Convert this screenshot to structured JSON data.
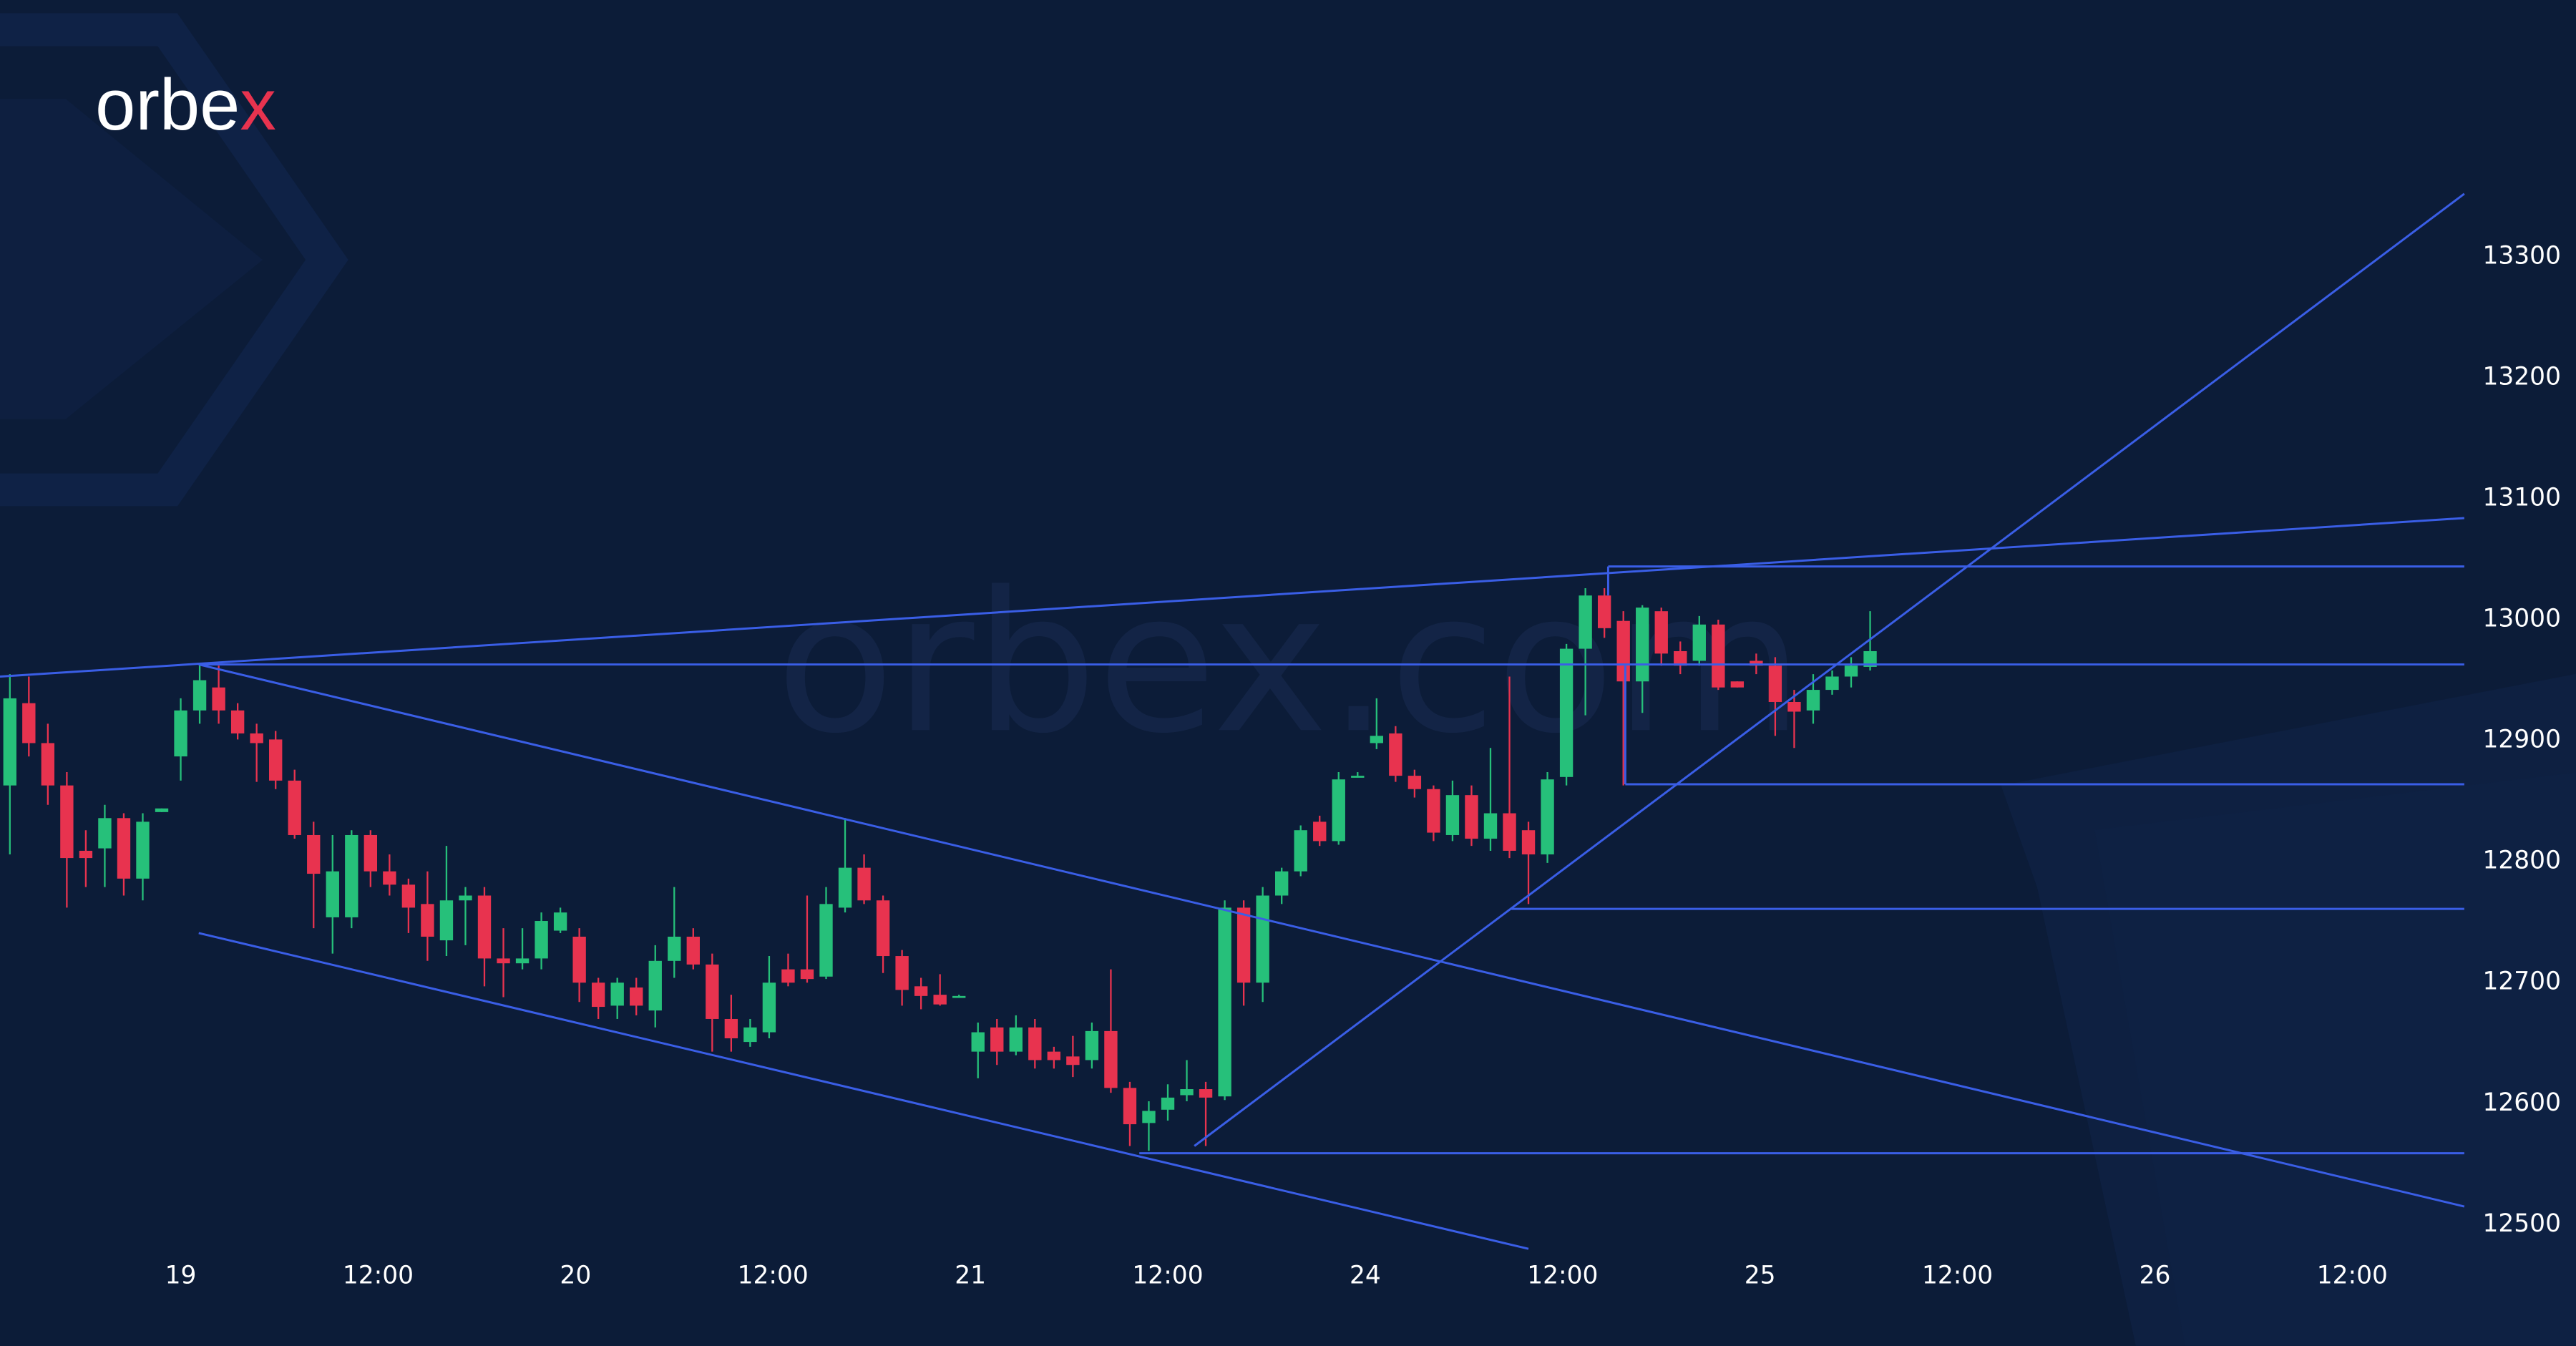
{
  "chart_data": {
    "type": "candlestick",
    "logo": "orbex",
    "watermark": "orbex.com",
    "up_color": "#26c07a",
    "down_color": "#e8334f",
    "line_color": "#3a5ee6",
    "xlim": [
      -9.52,
      120.3
    ],
    "ylim": [
      12480,
      13512
    ],
    "xticks": [
      {
        "value": 0,
        "label": "19"
      },
      {
        "value": 10.4,
        "label": "12:00"
      },
      {
        "value": 20.8,
        "label": "20"
      },
      {
        "value": 31.2,
        "label": "12:00"
      },
      {
        "value": 41.6,
        "label": "21"
      },
      {
        "value": 52,
        "label": "12:00"
      },
      {
        "value": 62.4,
        "label": "24"
      },
      {
        "value": 72.8,
        "label": "12:00"
      },
      {
        "value": 83.2,
        "label": "25"
      },
      {
        "value": 93.6,
        "label": "12:00"
      },
      {
        "value": 104,
        "label": "26"
      },
      {
        "value": 114.4,
        "label": "12:00"
      }
    ],
    "yticks": [
      12500,
      12600,
      12700,
      12800,
      12900,
      13000,
      13100,
      13200,
      13300
    ],
    "x": [
      -9,
      -8,
      -7,
      -6,
      -5,
      -4,
      -3,
      -2,
      -1,
      0,
      1,
      2,
      3,
      4,
      5,
      6,
      7,
      8,
      9,
      10,
      11,
      12,
      13,
      14,
      15,
      16,
      17,
      18,
      19,
      20,
      21,
      22,
      23,
      24,
      25,
      26,
      27,
      28,
      29,
      30,
      31,
      32,
      33,
      34,
      35,
      36,
      37,
      38,
      39,
      40,
      41,
      42,
      43,
      44,
      45,
      46,
      47,
      48,
      49,
      50,
      51,
      52,
      53,
      54,
      55,
      56,
      57,
      58,
      59,
      60,
      61,
      62,
      63,
      64,
      65,
      66,
      67,
      68,
      69,
      70,
      71,
      72,
      73,
      74,
      75,
      76,
      77,
      78,
      79,
      80,
      81,
      82,
      83,
      84,
      85,
      86,
      87,
      88,
      89
    ],
    "open": [
      12863,
      12931,
      12898,
      12863,
      12809,
      12811,
      12836,
      12786,
      12841,
      12887,
      12925,
      12944,
      12925,
      12906,
      12901,
      12867,
      12822,
      12754,
      12754,
      12822,
      12792,
      12781,
      12765,
      12735,
      12768,
      12772,
      12720,
      12716,
      12720,
      12743,
      12738,
      12700,
      12681,
      12696,
      12677,
      12718,
      12738,
      12715,
      12670,
      12651,
      12659,
      12711,
      12711,
      12705,
      12762,
      12795,
      12768,
      12722,
      12697,
      12690,
      12689,
      12643,
      12663,
      12643,
      12663,
      12643,
      12639,
      12636,
      12660,
      12613,
      12584,
      12595,
      12607,
      12612,
      12606,
      12762,
      12700,
      12772,
      12792,
      12833,
      12817,
      12871,
      12898,
      12906,
      12871,
      12860,
      12822,
      12855,
      12819,
      12840,
      12826,
      12806,
      12870,
      12976,
      13020,
      12999,
      12949,
      13007,
      12974,
      12966,
      12996,
      12949,
      12966,
      12962,
      12932,
      12925,
      12942,
      12953,
      12961
    ],
    "high": [
      12955,
      12953,
      12914,
      12874,
      12826,
      12847,
      12840,
      12840,
      12844,
      12935,
      12963,
      12962,
      12931,
      12914,
      12908,
      12876,
      12833,
      12822,
      12826,
      12826,
      12806,
      12786,
      12792,
      12813,
      12779,
      12779,
      12745,
      12745,
      12758,
      12762,
      12745,
      12704,
      12704,
      12704,
      12731,
      12779,
      12745,
      12724,
      12690,
      12670,
      12722,
      12724,
      12772,
      12779,
      12836,
      12806,
      12772,
      12727,
      12704,
      12707,
      12690,
      12667,
      12670,
      12673,
      12670,
      12647,
      12656,
      12667,
      12711,
      12618,
      12602,
      12616,
      12636,
      12618,
      12768,
      12768,
      12779,
      12795,
      12830,
      12838,
      12874,
      12874,
      12935,
      12912,
      12876,
      12863,
      12867,
      12863,
      12894,
      12953,
      12833,
      12874,
      12980,
      13026,
      13026,
      13007,
      13012,
      13010,
      12982,
      13003,
      13000,
      12949,
      12972,
      12969,
      12942,
      12955,
      12958,
      12969,
      13007
    ],
    "low": [
      12806,
      12887,
      12847,
      12762,
      12779,
      12779,
      12772,
      12768,
      12841,
      12867,
      12914,
      12914,
      12901,
      12866,
      12860,
      12819,
      12745,
      12724,
      12745,
      12779,
      12772,
      12741,
      12718,
      12722,
      12731,
      12697,
      12688,
      12711,
      12711,
      12741,
      12684,
      12670,
      12670,
      12673,
      12663,
      12704,
      12711,
      12643,
      12643,
      12647,
      12654,
      12697,
      12700,
      12703,
      12758,
      12765,
      12708,
      12681,
      12678,
      12681,
      12688,
      12621,
      12632,
      12640,
      12629,
      12629,
      12622,
      12629,
      12609,
      12565,
      12561,
      12586,
      12602,
      12565,
      12603,
      12681,
      12684,
      12765,
      12788,
      12813,
      12814,
      12870,
      12893,
      12866,
      12853,
      12817,
      12817,
      12813,
      12809,
      12803,
      12765,
      12799,
      12863,
      12921,
      12985,
      12863,
      12923,
      12962,
      12955,
      12962,
      12942,
      12944,
      12955,
      12904,
      12894,
      12914,
      12938,
      12944,
      12958
    ],
    "close": [
      12935,
      12898,
      12863,
      12803,
      12803,
      12836,
      12786,
      12833,
      12844,
      12925,
      12950,
      12925,
      12906,
      12898,
      12867,
      12822,
      12790,
      12792,
      12822,
      12792,
      12781,
      12762,
      12738,
      12768,
      12772,
      12720,
      12716,
      12720,
      12751,
      12758,
      12700,
      12680,
      12700,
      12681,
      12718,
      12738,
      12715,
      12670,
      12654,
      12663,
      12700,
      12700,
      12703,
      12765,
      12795,
      12768,
      12722,
      12694,
      12689,
      12682,
      12689,
      12659,
      12643,
      12663,
      12636,
      12636,
      12632,
      12660,
      12613,
      12583,
      12594,
      12605,
      12612,
      12605,
      12762,
      12700,
      12772,
      12792,
      12826,
      12817,
      12868,
      12871,
      12904,
      12871,
      12860,
      12824,
      12855,
      12819,
      12840,
      12809,
      12806,
      12868,
      12976,
      13020,
      12993,
      12949,
      13010,
      12972,
      12962,
      12996,
      12944,
      12944,
      12962,
      12932,
      12924,
      12942,
      12953,
      12962,
      12974
    ],
    "trendlines": [
      {
        "x": [
          -9.52,
          120.3
        ],
        "y": [
          12953,
          13084
        ]
      },
      {
        "x": [
          0.95,
          120.3
        ],
        "y": [
          12963,
          12963
        ]
      },
      {
        "x": [
          0.95,
          120.3
        ],
        "y": [
          12963,
          12515
        ]
      },
      {
        "x": [
          0.95,
          71.0
        ],
        "y": [
          12741,
          12480
        ]
      },
      {
        "x": [
          50.5,
          120.3
        ],
        "y": [
          12559,
          12559
        ]
      },
      {
        "x": [
          53.4,
          120.3
        ],
        "y": [
          12565,
          13352
        ]
      },
      {
        "x": [
          70.1,
          120.3
        ],
        "y": [
          12761,
          12761
        ]
      },
      {
        "x": [
          76.1,
          120.3
        ],
        "y": [
          12864,
          12864
        ]
      },
      {
        "x": [
          76.1,
          76.1
        ],
        "y": [
          12962,
          12864
        ]
      },
      {
        "x": [
          75.2,
          120.3
        ],
        "y": [
          13044,
          13044
        ]
      },
      {
        "x": [
          75.2,
          75.2
        ],
        "y": [
          13044,
          13020
        ]
      }
    ]
  }
}
